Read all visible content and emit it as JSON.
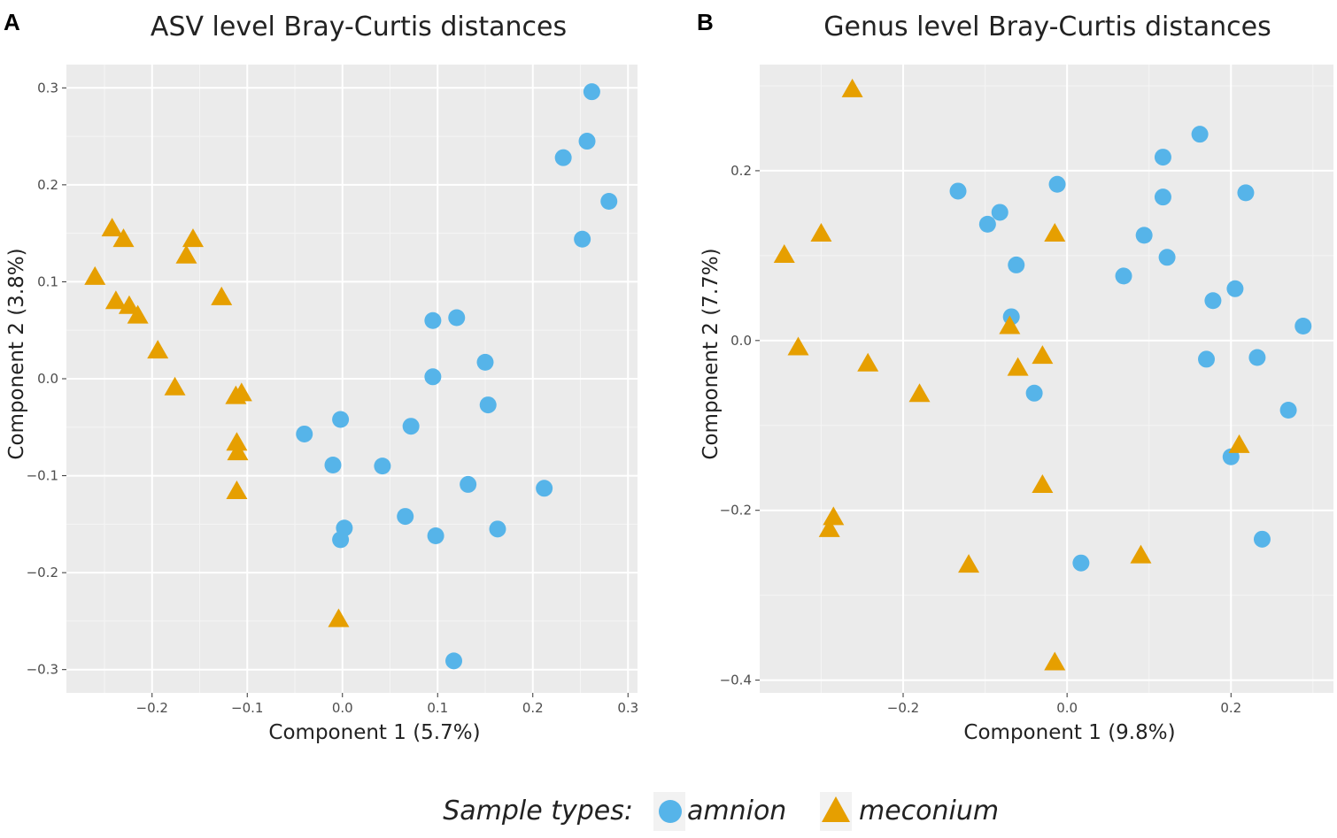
{
  "legend": {
    "title": "Sample types:",
    "items": [
      {
        "label": "amnion",
        "shape": "circle",
        "color": "#56B4E9"
      },
      {
        "label": "meconium",
        "shape": "triangle",
        "color": "#E69F00"
      }
    ]
  },
  "colors": {
    "panel_bg": "#EBEBEB",
    "grid_major": "#FFFFFF",
    "grid_minor": "#F5F5F5"
  },
  "chart_data": [
    {
      "type": "scatter",
      "panel_label": "A",
      "title": "ASV level Bray-Curtis distances",
      "xlabel": "Component 1 (5.7%)",
      "ylabel": "Component 2 (3.8%)",
      "xlim": [
        -0.29,
        0.31
      ],
      "ylim": [
        -0.324,
        0.324
      ],
      "xticks": [
        -0.2,
        -0.1,
        0.0,
        0.1,
        0.2,
        0.3
      ],
      "xtick_labels": [
        "−0.2",
        "−0.1",
        "0.0",
        "0.1",
        "0.2",
        "0.3"
      ],
      "yticks": [
        -0.3,
        -0.2,
        -0.1,
        0.0,
        0.1,
        0.2,
        0.3
      ],
      "ytick_labels": [
        "−0.3",
        "−0.2",
        "−0.1",
        "0.0",
        "0.1",
        "0.2",
        "0.3"
      ],
      "grid": true,
      "series": [
        {
          "name": "amnion",
          "shape": "circle",
          "color": "#56B4E9",
          "points": [
            [
              0.262,
              0.296
            ],
            [
              0.257,
              0.245
            ],
            [
              0.232,
              0.228
            ],
            [
              0.28,
              0.183
            ],
            [
              0.252,
              0.144
            ],
            [
              0.12,
              0.063
            ],
            [
              0.095,
              0.06
            ],
            [
              0.095,
              0.002
            ],
            [
              0.15,
              0.017
            ],
            [
              0.153,
              -0.027
            ],
            [
              0.072,
              -0.049
            ],
            [
              -0.04,
              -0.057
            ],
            [
              -0.002,
              -0.042
            ],
            [
              -0.01,
              -0.089
            ],
            [
              0.042,
              -0.09
            ],
            [
              0.132,
              -0.109
            ],
            [
              0.212,
              -0.113
            ],
            [
              0.066,
              -0.142
            ],
            [
              0.002,
              -0.154
            ],
            [
              -0.002,
              -0.166
            ],
            [
              0.098,
              -0.162
            ],
            [
              0.163,
              -0.155
            ],
            [
              0.117,
              -0.291
            ]
          ]
        },
        {
          "name": "meconium",
          "shape": "triangle",
          "color": "#E69F00",
          "points": [
            [
              -0.26,
              0.106
            ],
            [
              -0.242,
              0.156
            ],
            [
              -0.23,
              0.145
            ],
            [
              -0.157,
              0.145
            ],
            [
              -0.164,
              0.128
            ],
            [
              -0.238,
              0.081
            ],
            [
              -0.224,
              0.076
            ],
            [
              -0.215,
              0.066
            ],
            [
              -0.127,
              0.085
            ],
            [
              -0.194,
              0.03
            ],
            [
              -0.176,
              -0.008
            ],
            [
              -0.106,
              -0.014
            ],
            [
              -0.112,
              -0.017
            ],
            [
              -0.111,
              -0.065
            ],
            [
              -0.11,
              -0.075
            ],
            [
              -0.111,
              -0.115
            ],
            [
              -0.004,
              -0.247
            ]
          ]
        }
      ]
    },
    {
      "type": "scatter",
      "panel_label": "B",
      "title": "Genus level Bray-Curtis distances",
      "xlabel": "Component 1 (9.8%)",
      "ylabel": "Component 2 (7.7%)",
      "xlim": [
        -0.375,
        0.325
      ],
      "ylim": [
        -0.415,
        0.325
      ],
      "xticks": [
        -0.2,
        0.0,
        0.2
      ],
      "xtick_labels": [
        "−0.2",
        "0.0",
        "0.2"
      ],
      "yticks": [
        -0.4,
        -0.2,
        0.0,
        0.2
      ],
      "ytick_labels": [
        "−0.4",
        "−0.2",
        "0.0",
        "0.2"
      ],
      "grid": true,
      "series": [
        {
          "name": "amnion",
          "shape": "circle",
          "color": "#56B4E9",
          "points": [
            [
              0.162,
              0.243
            ],
            [
              0.117,
              0.216
            ],
            [
              0.117,
              0.169
            ],
            [
              0.218,
              0.174
            ],
            [
              -0.133,
              0.176
            ],
            [
              -0.012,
              0.184
            ],
            [
              -0.082,
              0.151
            ],
            [
              -0.097,
              0.137
            ],
            [
              0.094,
              0.124
            ],
            [
              0.122,
              0.098
            ],
            [
              -0.062,
              0.089
            ],
            [
              0.069,
              0.076
            ],
            [
              0.205,
              0.061
            ],
            [
              0.178,
              0.047
            ],
            [
              -0.068,
              0.028
            ],
            [
              0.288,
              0.017
            ],
            [
              0.17,
              -0.022
            ],
            [
              0.232,
              -0.02
            ],
            [
              -0.04,
              -0.062
            ],
            [
              0.27,
              -0.082
            ],
            [
              0.2,
              -0.137
            ],
            [
              0.238,
              -0.234
            ],
            [
              0.017,
              -0.262
            ]
          ]
        },
        {
          "name": "meconium",
          "shape": "triangle",
          "color": "#E69F00",
          "points": [
            [
              -0.262,
              0.297
            ],
            [
              -0.3,
              0.127
            ],
            [
              -0.345,
              0.102
            ],
            [
              -0.015,
              0.127
            ],
            [
              -0.328,
              -0.007
            ],
            [
              -0.07,
              0.018
            ],
            [
              -0.243,
              -0.026
            ],
            [
              -0.06,
              -0.031
            ],
            [
              -0.03,
              -0.017
            ],
            [
              -0.18,
              -0.062
            ],
            [
              0.21,
              -0.122
            ],
            [
              -0.03,
              -0.169
            ],
            [
              -0.285,
              -0.207
            ],
            [
              -0.29,
              -0.221
            ],
            [
              -0.12,
              -0.263
            ],
            [
              0.09,
              -0.252
            ],
            [
              -0.015,
              -0.378
            ]
          ]
        }
      ]
    }
  ]
}
